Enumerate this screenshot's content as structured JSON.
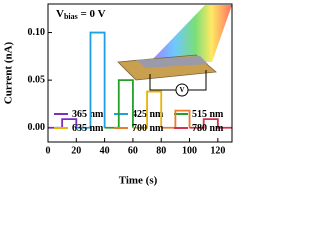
{
  "chart_data": {
    "type": "line",
    "x_label": "Time (s)",
    "y_label": "Current (nA)",
    "annotation": {
      "main": "V",
      "sub": "bias",
      "rest": " = 0 V"
    },
    "inset_label": "V",
    "xlim": [
      0,
      130
    ],
    "xticks": [
      0,
      20,
      40,
      60,
      80,
      100,
      120
    ],
    "ylim": [
      -0.015,
      0.13
    ],
    "yticks": [
      {
        "value": 0,
        "label": "0.00"
      },
      {
        "value": 0.05,
        "label": "0.05"
      },
      {
        "value": 0.1,
        "label": "0.10"
      }
    ],
    "series": [
      {
        "name": "365 nm",
        "color": "#7b2fbf",
        "x": [
          0,
          10,
          10,
          20,
          20
        ],
        "values": [
          0,
          0,
          0.009,
          0.009,
          0
        ]
      },
      {
        "name": "425 nm",
        "color": "#1ea0e6",
        "x": [
          20,
          30,
          30,
          40,
          40
        ],
        "values": [
          0,
          0,
          0.1,
          0.1,
          0
        ]
      },
      {
        "name": "515 nm",
        "color": "#22a02a",
        "x": [
          40,
          50,
          50,
          60,
          60
        ],
        "values": [
          0,
          0,
          0.05,
          0.05,
          0
        ]
      },
      {
        "name": "635 nm",
        "color": "#e8b400",
        "x": [
          60,
          70,
          70,
          80,
          80
        ],
        "values": [
          0,
          0,
          0.038,
          0.038,
          0
        ]
      },
      {
        "name": "700 nm",
        "color": "#ec7a2c",
        "x": [
          80,
          90,
          90,
          100,
          100
        ],
        "values": [
          0,
          0,
          0.018,
          0.018,
          0
        ]
      },
      {
        "name": "780 nm",
        "color": "#d6304a",
        "x": [
          100,
          110,
          110,
          120,
          120,
          130
        ],
        "values": [
          0,
          0,
          0.009,
          0.009,
          0,
          0
        ]
      }
    ]
  }
}
